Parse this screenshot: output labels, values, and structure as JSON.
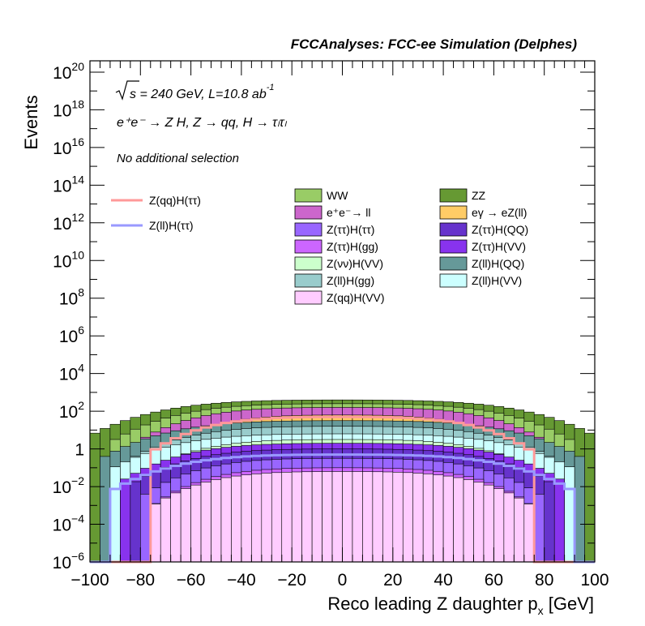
{
  "chart_data": {
    "type": "stacked-histogram",
    "title": "FCCAnalyses: FCC-ee Simulation (Delphes)",
    "annotations": {
      "energy_prefix": "s",
      "energy_text": " = 240 GeV, L=10.8 ab",
      "energy_exp": "-1",
      "process": "e⁺e⁻ → Z H, Z → qq, H → τₗτₗ",
      "selection": "No additional selection"
    },
    "xlabel": "Reco leading Z daughter p",
    "xlabel_sub": "x",
    "xlabel_unit": " [GeV]",
    "ylabel": "Events",
    "xlim": [
      -100,
      100
    ],
    "ylim_log10": [
      -6,
      20.6
    ],
    "x_ticks": [
      "−100",
      "−80",
      "−60",
      "−40",
      "−20",
      "0",
      "20",
      "40",
      "60",
      "80",
      "100"
    ],
    "y_ticks": [
      {
        "base": "10",
        "exp": "−6",
        "p": -6
      },
      {
        "base": "10",
        "exp": "−4",
        "p": -4
      },
      {
        "base": "10",
        "exp": "−2",
        "p": -2
      },
      {
        "base": "1",
        "exp": "",
        "p": 0
      },
      {
        "base": "10",
        "exp": "2",
        "p": 2
      },
      {
        "base": "10",
        "exp": "4",
        "p": 4
      },
      {
        "base": "10",
        "exp": "6",
        "p": 6
      },
      {
        "base": "10",
        "exp": "8",
        "p": 8
      },
      {
        "base": "10",
        "exp": "10",
        "p": 10
      },
      {
        "base": "10",
        "exp": "12",
        "p": 12
      },
      {
        "base": "10",
        "exp": "14",
        "p": 14
      },
      {
        "base": "10",
        "exp": "16",
        "p": 16
      },
      {
        "base": "10",
        "exp": "18",
        "p": 18
      },
      {
        "base": "10",
        "exp": "20",
        "p": 20
      }
    ],
    "stack_layers": [
      {
        "name": "Z(qq)H(VV)",
        "color": "#ffccff",
        "log10_top_center": -1.2,
        "edge": 76
      },
      {
        "name": "Z(ττ)H(gg)",
        "color": "#cc66ff",
        "log10_top_center": -1.0,
        "edge": 74
      },
      {
        "name": "Z(ττ)H(ττ)",
        "color": "#9966ff",
        "log10_top_center": -0.5,
        "edge": 78
      },
      {
        "name": "Z(ττ)H(QQ)",
        "color": "#6633cc",
        "log10_top_center": 0.0,
        "edge": 84
      },
      {
        "name": "Z(ττ)H(VV)",
        "color": "#8833ee",
        "log10_top_center": 0.3,
        "edge": 86
      },
      {
        "name": "Z(νν)H(VV)",
        "color": "#ccffcc",
        "log10_top_center": 0.5,
        "edge": 80
      },
      {
        "name": "Z(ll)H(VV)",
        "color": "#ccffff",
        "log10_top_center": 0.8,
        "edge": 92
      },
      {
        "name": "Z(ll)H(gg)",
        "color": "#99cccc",
        "log10_top_center": 1.2,
        "edge": 86
      },
      {
        "name": "Z(ll)H(QQ)",
        "color": "#669999",
        "log10_top_center": 1.5,
        "edge": 94
      },
      {
        "name": "eγ → eZ(ll)",
        "color": "#ffcc66",
        "log10_top_center": 1.8,
        "edge": 70
      },
      {
        "name": "e⁺e⁻→ ll",
        "color": "#cc66cc",
        "log10_top_center": 2.2,
        "edge": 82
      },
      {
        "name": "WW",
        "color": "#99cc66",
        "log10_top_center": 2.4,
        "edge": 90
      },
      {
        "name": "ZZ",
        "color": "#669933",
        "log10_top_center": 2.6,
        "edge": 100
      }
    ],
    "signal_lines": [
      {
        "name": "Z(qq)H(ττ)",
        "color": "#ff9999",
        "log10_center": 1.7,
        "edge": 76
      },
      {
        "name": "Z(ll)H(ττ)",
        "color": "#9999ff",
        "log10_center": -0.3,
        "edge": 91
      }
    ],
    "legend_signal": [
      "Z(qq)H(ττ)",
      "Z(ll)H(ττ)"
    ],
    "legend_bkg_left": [
      "WW",
      "e⁺e⁻→ ll",
      "Z(ττ)H(ττ)",
      "Z(ττ)H(gg)",
      "Z(νν)H(VV)",
      "Z(ll)H(gg)",
      "Z(qq)H(VV)"
    ],
    "legend_bkg_right": [
      "ZZ",
      "eγ → eZ(ll)",
      "Z(ττ)H(QQ)",
      "Z(ττ)H(VV)",
      "Z(ll)H(QQ)",
      "Z(ll)H(VV)"
    ]
  }
}
